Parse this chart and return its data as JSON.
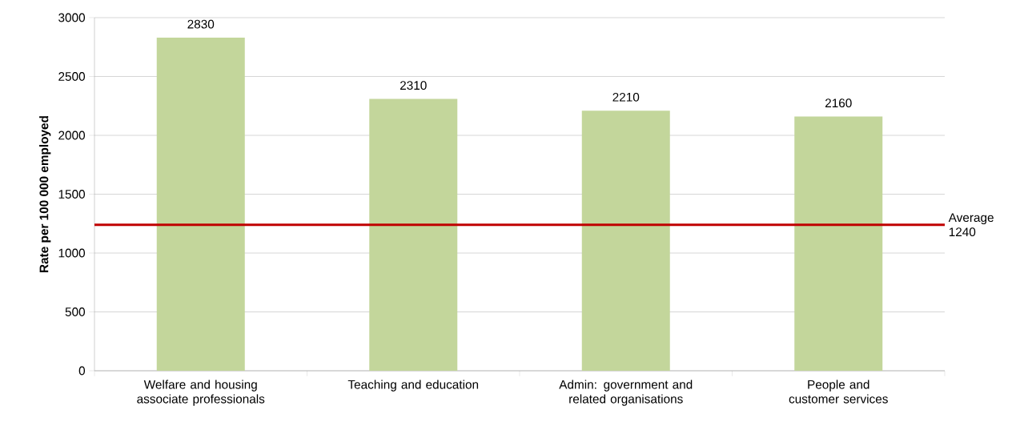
{
  "chart_data": {
    "type": "bar",
    "ylabel": "Rate per 100 000 employed",
    "categories": [
      "Welfare and housing associate professionals",
      "Teaching and education",
      "Admin: government and related organisations",
      "People and customer services"
    ],
    "values": [
      2830,
      2310,
      2210,
      2160
    ],
    "color": "#c3d69b",
    "data_labels": true,
    "ylim": [
      0,
      3000
    ],
    "yticks": [
      0,
      500,
      1000,
      1500,
      2000,
      2500,
      3000
    ],
    "grid": "y",
    "ref_lines": [
      {
        "axis": "y",
        "value": 1240,
        "label": "Average 1240",
        "color": "#c00000"
      }
    ]
  }
}
